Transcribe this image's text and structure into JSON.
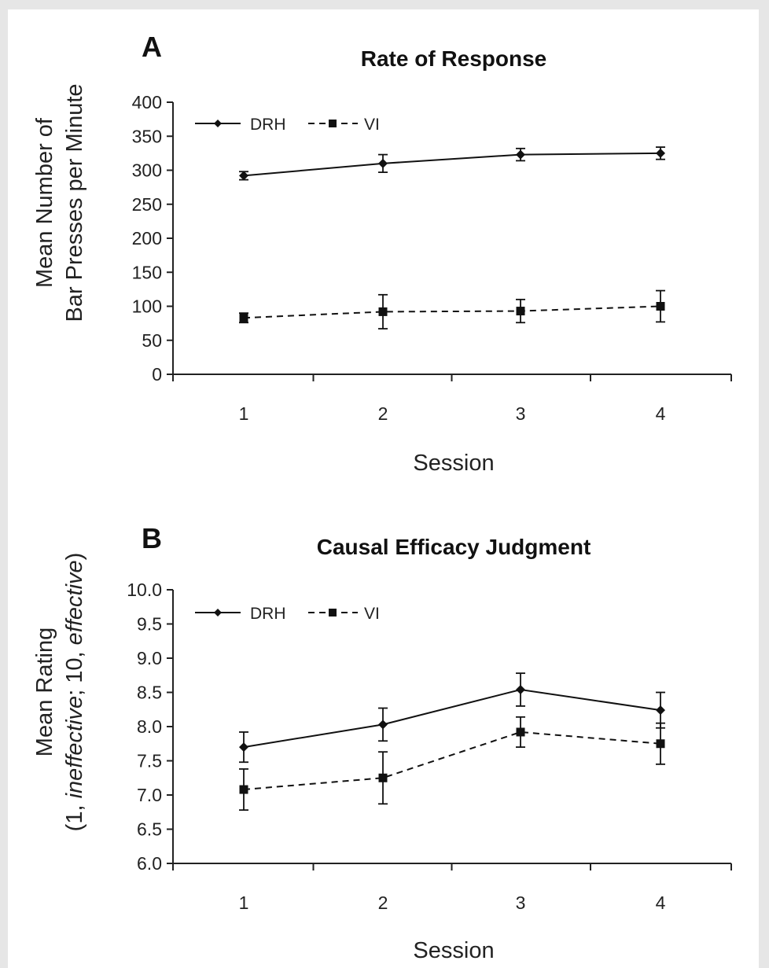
{
  "chart_data": [
    {
      "panel": "A",
      "type": "line",
      "title": "Rate of Response",
      "xlabel": "Session",
      "ylabel_lines": [
        "Mean Number of",
        "Bar Presses per Minute"
      ],
      "categories": [
        "1",
        "2",
        "3",
        "4"
      ],
      "ylim": [
        0,
        400
      ],
      "yticks": [
        "0",
        "50",
        "100",
        "150",
        "200",
        "250",
        "300",
        "350",
        "400"
      ],
      "legend": "top-left",
      "series": [
        {
          "name": "DRH",
          "marker": "diamond",
          "line": "solid",
          "values": [
            292,
            310,
            323,
            325
          ],
          "errors": [
            6,
            13,
            9,
            9
          ]
        },
        {
          "name": "VI",
          "marker": "square",
          "line": "dashed",
          "values": [
            83,
            92,
            93,
            100
          ],
          "errors": [
            7,
            25,
            17,
            23
          ]
        }
      ]
    },
    {
      "panel": "B",
      "type": "line",
      "title": "Causal Efficacy Judgment",
      "xlabel": "Session",
      "ylabel_lines": [
        "Mean Rating",
        "(1, ineffective; 10, effective)"
      ],
      "categories": [
        "1",
        "2",
        "3",
        "4"
      ],
      "ylim": [
        6.0,
        10.0
      ],
      "yticks": [
        "6.0",
        "6.5",
        "7.0",
        "7.5",
        "8.0",
        "8.5",
        "9.0",
        "9.5",
        "10.0"
      ],
      "legend": "top-left",
      "series": [
        {
          "name": "DRH",
          "marker": "diamond",
          "line": "solid",
          "values": [
            7.7,
            8.03,
            8.54,
            8.24
          ],
          "errors": [
            0.22,
            0.24,
            0.24,
            0.26
          ]
        },
        {
          "name": "VI",
          "marker": "square",
          "line": "dashed",
          "values": [
            7.08,
            7.25,
            7.92,
            7.75
          ],
          "errors": [
            0.3,
            0.38,
            0.22,
            0.3
          ]
        }
      ]
    }
  ]
}
